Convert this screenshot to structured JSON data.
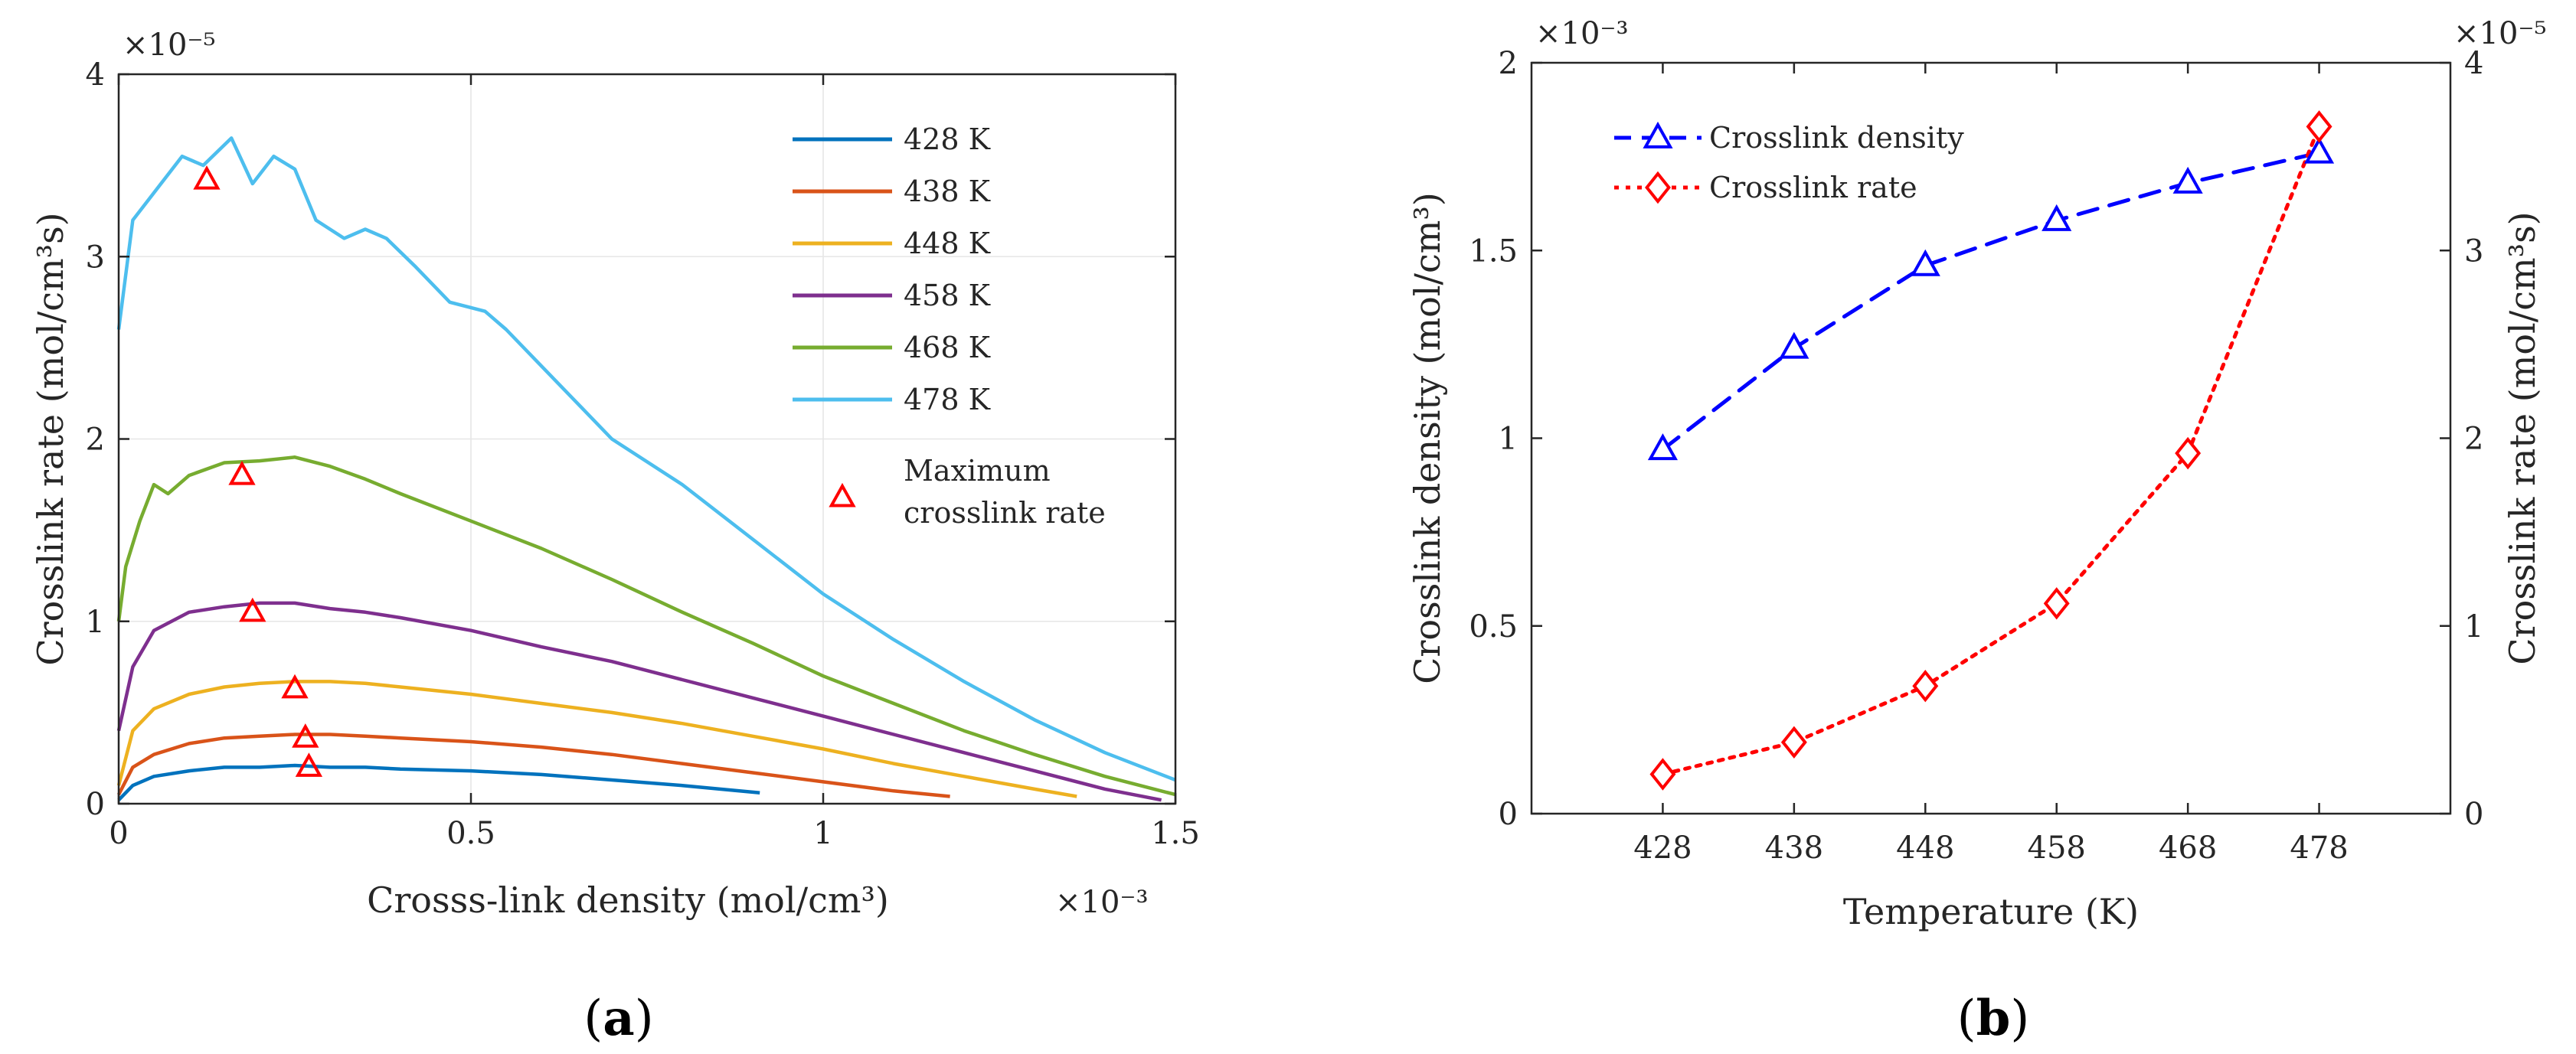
{
  "chart_data": [
    {
      "type": "line",
      "panel_label": "a",
      "title": "",
      "xlabel": "Crosss-link density (mol/cm³)",
      "ylabel": "Crosslink rate (mol/cm³s)",
      "x_exponent_label": "×10⁻³",
      "y_exponent_label": "×10⁻⁵",
      "xlim": [
        0,
        1.5
      ],
      "ylim": [
        0,
        4
      ],
      "x_ticks": [
        0,
        0.5,
        1,
        1.5
      ],
      "x_tick_labels": [
        "0",
        "0.5",
        "1",
        "1.5"
      ],
      "y_ticks": [
        0,
        1,
        2,
        3,
        4
      ],
      "y_tick_labels": [
        "0",
        "1",
        "2",
        "3",
        "4"
      ],
      "grid": true,
      "legend_position": "top-right",
      "series": [
        {
          "name": "428 K",
          "color": "#0072BD",
          "x": [
            0,
            0.02,
            0.05,
            0.1,
            0.15,
            0.2,
            0.25,
            0.3,
            0.35,
            0.4,
            0.5,
            0.6,
            0.7,
            0.8,
            0.91
          ],
          "y": [
            0.02,
            0.1,
            0.15,
            0.18,
            0.2,
            0.2,
            0.21,
            0.2,
            0.2,
            0.19,
            0.18,
            0.16,
            0.13,
            0.1,
            0.06
          ]
        },
        {
          "name": "438 K",
          "color": "#D95319",
          "x": [
            0,
            0.02,
            0.05,
            0.1,
            0.15,
            0.2,
            0.25,
            0.3,
            0.35,
            0.4,
            0.5,
            0.6,
            0.7,
            0.8,
            0.9,
            1.0,
            1.1,
            1.18
          ],
          "y": [
            0.05,
            0.2,
            0.27,
            0.33,
            0.36,
            0.37,
            0.38,
            0.38,
            0.37,
            0.36,
            0.34,
            0.31,
            0.27,
            0.22,
            0.17,
            0.12,
            0.07,
            0.04
          ]
        },
        {
          "name": "448 K",
          "color": "#EDB120",
          "x": [
            0,
            0.02,
            0.05,
            0.1,
            0.15,
            0.2,
            0.25,
            0.3,
            0.35,
            0.4,
            0.5,
            0.6,
            0.7,
            0.8,
            0.9,
            1.0,
            1.1,
            1.2,
            1.3,
            1.36
          ],
          "y": [
            0.1,
            0.4,
            0.52,
            0.6,
            0.64,
            0.66,
            0.67,
            0.67,
            0.66,
            0.64,
            0.6,
            0.55,
            0.5,
            0.44,
            0.37,
            0.3,
            0.22,
            0.15,
            0.08,
            0.04
          ]
        },
        {
          "name": "458 K",
          "color": "#7E2F8E",
          "x": [
            0,
            0.02,
            0.05,
            0.1,
            0.15,
            0.2,
            0.25,
            0.3,
            0.35,
            0.4,
            0.5,
            0.6,
            0.7,
            0.8,
            0.9,
            1.0,
            1.1,
            1.2,
            1.3,
            1.4,
            1.48
          ],
          "y": [
            0.4,
            0.75,
            0.95,
            1.05,
            1.08,
            1.1,
            1.1,
            1.07,
            1.05,
            1.02,
            0.95,
            0.86,
            0.78,
            0.68,
            0.58,
            0.48,
            0.38,
            0.28,
            0.18,
            0.08,
            0.02
          ]
        },
        {
          "name": "468 K",
          "color": "#77AC30",
          "x": [
            0,
            0.01,
            0.03,
            0.05,
            0.07,
            0.1,
            0.15,
            0.2,
            0.25,
            0.3,
            0.35,
            0.4,
            0.5,
            0.6,
            0.7,
            0.8,
            0.9,
            1.0,
            1.1,
            1.2,
            1.3,
            1.4,
            1.5
          ],
          "y": [
            1.0,
            1.3,
            1.55,
            1.75,
            1.7,
            1.8,
            1.87,
            1.88,
            1.9,
            1.85,
            1.78,
            1.7,
            1.55,
            1.4,
            1.23,
            1.05,
            0.88,
            0.7,
            0.55,
            0.4,
            0.27,
            0.15,
            0.05
          ]
        },
        {
          "name": "478 K",
          "color": "#4DBEEE",
          "x": [
            0,
            0.02,
            0.05,
            0.09,
            0.12,
            0.16,
            0.19,
            0.22,
            0.25,
            0.28,
            0.32,
            0.35,
            0.38,
            0.42,
            0.47,
            0.52,
            0.55,
            0.6,
            0.65,
            0.7,
            0.8,
            0.9,
            1.0,
            1.1,
            1.2,
            1.3,
            1.4,
            1.5
          ],
          "y": [
            2.6,
            3.2,
            3.35,
            3.55,
            3.5,
            3.65,
            3.4,
            3.55,
            3.48,
            3.2,
            3.1,
            3.15,
            3.1,
            2.95,
            2.75,
            2.7,
            2.6,
            2.4,
            2.2,
            2.0,
            1.75,
            1.45,
            1.15,
            0.9,
            0.67,
            0.46,
            0.28,
            0.13
          ]
        }
      ],
      "max_markers": {
        "name_line1": "Maximum",
        "name_line2": "crosslink rate",
        "color": "#FF0000",
        "x": [
          0.27,
          0.265,
          0.25,
          0.19,
          0.175,
          0.125
        ],
        "y": [
          0.2,
          0.36,
          0.63,
          1.05,
          1.8,
          3.42
        ]
      }
    },
    {
      "type": "line",
      "panel_label": "b",
      "title": "",
      "xlabel": "Temperature (K)",
      "ylabel_left": "Crosslink density (mol/cm³)",
      "ylabel_right": "Crosslink rate (mol/cm³s)",
      "y_left_exponent_label": "×10⁻³",
      "y_right_exponent_label": "×10⁻⁵",
      "xlim": [
        418,
        488
      ],
      "ylim_left": [
        0,
        2
      ],
      "ylim_right": [
        0,
        4
      ],
      "x_ticks": [
        428,
        438,
        448,
        458,
        468,
        478
      ],
      "x_tick_labels": [
        "428",
        "438",
        "448",
        "458",
        "468",
        "478"
      ],
      "y_left_ticks": [
        0,
        0.5,
        1,
        1.5,
        2
      ],
      "y_left_tick_labels": [
        "0",
        "0.5",
        "1",
        "1.5",
        "2"
      ],
      "y_right_ticks": [
        0,
        1,
        2,
        3,
        4
      ],
      "y_right_tick_labels": [
        "0",
        "1",
        "2",
        "3",
        "4"
      ],
      "grid": false,
      "legend_position": "top-left",
      "series": [
        {
          "name": "Crosslink density",
          "color": "#0000FF",
          "marker": "triangle",
          "line_style": "dashed",
          "axis": "left",
          "x": [
            428,
            438,
            448,
            458,
            468,
            478
          ],
          "y": [
            0.97,
            1.24,
            1.46,
            1.58,
            1.68,
            1.76
          ]
        },
        {
          "name": "Crosslink rate",
          "color": "#FF0000",
          "marker": "diamond",
          "line_style": "dotted",
          "axis": "right",
          "x": [
            428,
            438,
            448,
            458,
            468,
            478
          ],
          "y": [
            0.21,
            0.38,
            0.68,
            1.12,
            1.92,
            3.66
          ]
        }
      ]
    }
  ]
}
